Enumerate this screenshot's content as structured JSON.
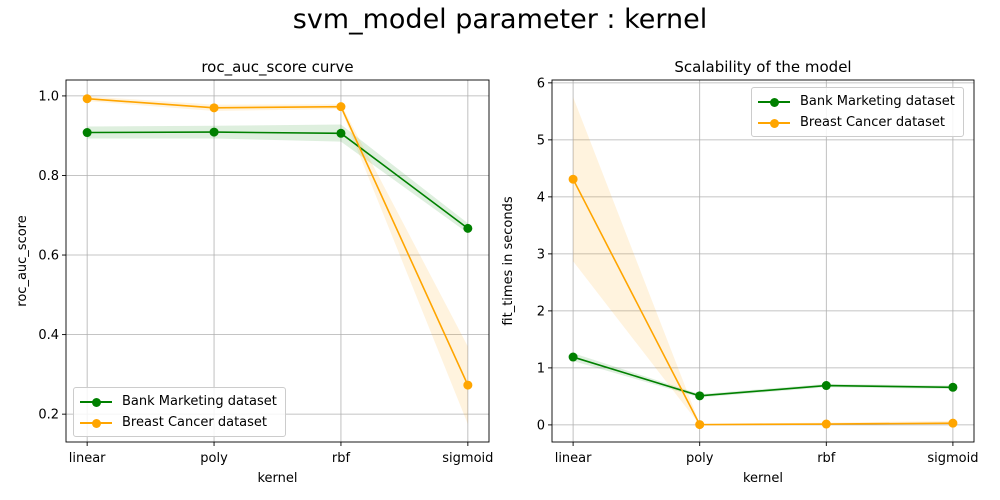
{
  "suptitle": "svm_model parameter : kernel",
  "colors": {
    "bank": "#008000",
    "cancer": "#ffa500",
    "grid": "#b0b0b0"
  },
  "chart_data": [
    {
      "type": "line",
      "title": "roc_auc_score curve",
      "xlabel": "kernel",
      "ylabel": "roc_auc_score",
      "categories": [
        "linear",
        "poly",
        "rbf",
        "sigmoid"
      ],
      "ylim": [
        0.13,
        1.04
      ],
      "yticks": [
        0.2,
        0.4,
        0.6,
        0.8,
        1.0
      ],
      "ytick_labels": [
        "0.2",
        "0.4",
        "0.6",
        "0.8",
        "1.0"
      ],
      "grid": true,
      "legend_position": "lower-left",
      "series": [
        {
          "name": "Bank Marketing dataset",
          "values": [
            0.908,
            0.909,
            0.906,
            0.667
          ],
          "lower": [
            0.893,
            0.893,
            0.885,
            0.655
          ],
          "upper": [
            0.923,
            0.925,
            0.928,
            0.68
          ]
        },
        {
          "name": "Breast Cancer dataset",
          "values": [
            0.993,
            0.97,
            0.973,
            0.273
          ],
          "lower": [
            0.987,
            0.962,
            0.967,
            0.175
          ],
          "upper": [
            0.999,
            0.978,
            0.979,
            0.37
          ]
        }
      ]
    },
    {
      "type": "line",
      "title": "Scalability of the model",
      "xlabel": "kernel",
      "ylabel": "fit_times in seconds",
      "categories": [
        "linear",
        "poly",
        "rbf",
        "sigmoid"
      ],
      "ylim": [
        -0.3,
        6.05
      ],
      "yticks": [
        0,
        1,
        2,
        3,
        4,
        5,
        6
      ],
      "ytick_labels": [
        "0",
        "1",
        "2",
        "3",
        "4",
        "5",
        "6"
      ],
      "grid": true,
      "legend_position": "upper-right",
      "series": [
        {
          "name": "Bank Marketing dataset",
          "values": [
            1.19,
            0.51,
            0.69,
            0.66
          ],
          "lower": [
            1.12,
            0.48,
            0.66,
            0.63
          ],
          "upper": [
            1.26,
            0.54,
            0.72,
            0.69
          ]
        },
        {
          "name": "Breast Cancer dataset",
          "values": [
            4.31,
            0.005,
            0.015,
            0.03
          ],
          "lower": [
            2.87,
            0.0,
            0.0,
            0.0
          ],
          "upper": [
            5.75,
            0.02,
            0.04,
            0.07
          ]
        }
      ]
    }
  ]
}
